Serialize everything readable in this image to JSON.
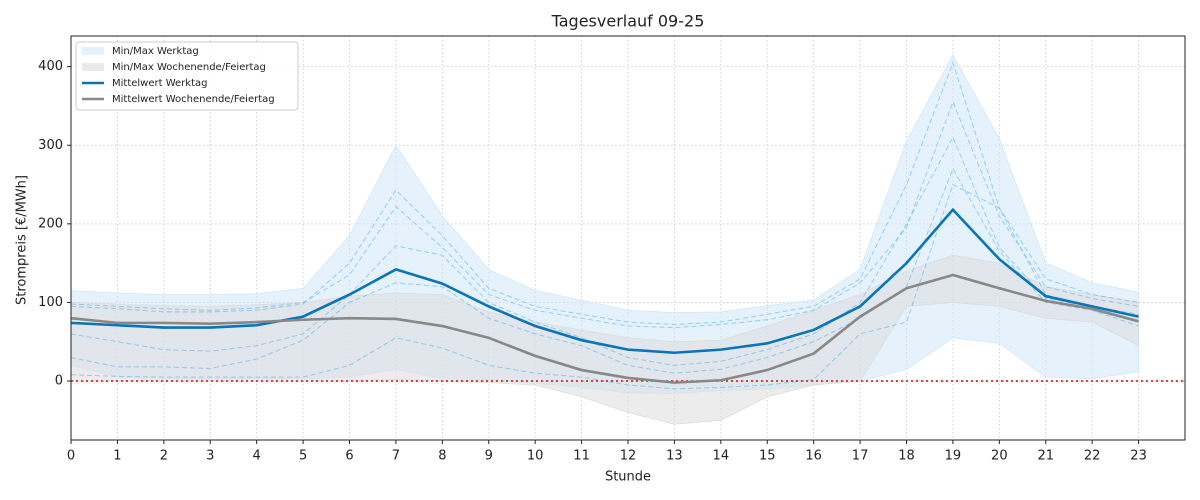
{
  "chart_data": {
    "type": "line",
    "title": "Tagesverlauf 09-25",
    "x_label": "Stunde",
    "y_label": "Strompreis [€/MWh]",
    "x": [
      0,
      1,
      2,
      3,
      4,
      5,
      6,
      7,
      8,
      9,
      10,
      11,
      12,
      13,
      14,
      15,
      16,
      17,
      18,
      19,
      20,
      21,
      22,
      23
    ],
    "xlim": [
      0,
      24
    ],
    "xticks": [
      0,
      1,
      2,
      3,
      4,
      5,
      6,
      7,
      8,
      9,
      10,
      11,
      12,
      13,
      14,
      15,
      16,
      17,
      18,
      19,
      20,
      21,
      22,
      23
    ],
    "ylim": [
      -75,
      439
    ],
    "yticks": [
      0,
      100,
      200,
      300,
      400
    ],
    "grid": true,
    "zero_line_color": "#e00000",
    "legend": "upper left",
    "bands": [
      {
        "name": "Min/Max Werktag",
        "color": "#cfe8fa",
        "upper": [
          115,
          112,
          110,
          110,
          111,
          118,
          185,
          300,
          210,
          142,
          115,
          103,
          90,
          87,
          88,
          96,
          103,
          142,
          305,
          415,
          308,
          150,
          125,
          113
        ],
        "lower": [
          20,
          5,
          3,
          3,
          3,
          3,
          5,
          15,
          3,
          2,
          -3,
          -8,
          -15,
          -16,
          -12,
          -10,
          -5,
          0,
          15,
          55,
          48,
          5,
          3,
          12
        ]
      },
      {
        "name": "Min/Max Wochenende/Feiertag",
        "color": "#dcdcdc",
        "upper": [
          100,
          98,
          96,
          95,
          97,
          100,
          108,
          112,
          110,
          88,
          75,
          65,
          55,
          50,
          52,
          70,
          90,
          110,
          140,
          160,
          150,
          120,
          110,
          100
        ],
        "lower": [
          0,
          0,
          0,
          0,
          0,
          0,
          0,
          2,
          0,
          -2,
          -5,
          -20,
          -40,
          -55,
          -50,
          -20,
          -5,
          0,
          95,
          100,
          95,
          80,
          75,
          45
        ]
      }
    ],
    "series": [
      {
        "name": "Mittelwert Werktag",
        "color": "#0a74b8",
        "values": [
          74,
          71,
          68,
          68,
          71,
          82,
          110,
          142,
          124,
          95,
          70,
          52,
          40,
          36,
          40,
          48,
          65,
          95,
          150,
          218,
          155,
          108,
          95,
          82
        ]
      },
      {
        "name": "Mittelwert Wochenende/Feiertag",
        "color": "#888888",
        "values": [
          80,
          74,
          74,
          73,
          75,
          78,
          80,
          79,
          70,
          55,
          32,
          14,
          4,
          -2,
          1,
          14,
          35,
          82,
          118,
          135,
          118,
          102,
          92,
          76
        ]
      }
    ],
    "daily_color": "#5ab4ea",
    "daily": [
      [
        98,
        95,
        92,
        90,
        93,
        100,
        135,
        222,
        170,
        110,
        90,
        80,
        70,
        68,
        72,
        78,
        90,
        125,
        195,
        355,
        210,
        120,
        105,
        95
      ],
      [
        95,
        92,
        88,
        88,
        90,
        98,
        150,
        243,
        185,
        118,
        95,
        85,
        75,
        72,
        75,
        85,
        95,
        130,
        250,
        405,
        220,
        130,
        110,
        100
      ],
      [
        60,
        50,
        40,
        38,
        45,
        60,
        110,
        172,
        160,
        100,
        75,
        55,
        30,
        20,
        25,
        40,
        60,
        100,
        200,
        310,
        170,
        105,
        95,
        85
      ],
      [
        30,
        18,
        18,
        16,
        28,
        52,
        100,
        125,
        120,
        80,
        60,
        45,
        20,
        10,
        15,
        30,
        50,
        80,
        120,
        270,
        165,
        100,
        90,
        70
      ],
      [
        8,
        6,
        5,
        5,
        5,
        5,
        20,
        55,
        42,
        20,
        10,
        5,
        -5,
        -10,
        -8,
        -5,
        2,
        60,
        75,
        250,
        220,
        110,
        90,
        75
      ]
    ]
  }
}
